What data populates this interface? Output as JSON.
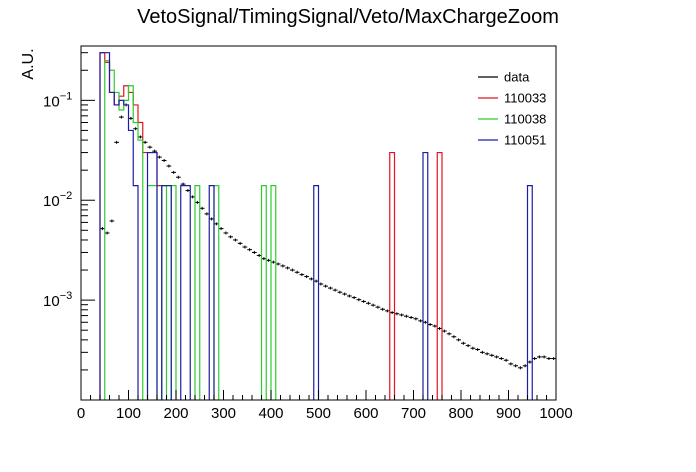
{
  "chart_data": {
    "type": "histogram",
    "title": "VetoSignal/TimingSignal/Veto/MaxChargeZoom",
    "xlabel": "",
    "ylabel": "A.U.",
    "xlim": [
      0,
      1000
    ],
    "ylim": [
      0.0001,
      0.35
    ],
    "yscale": "log",
    "grid": false,
    "legend_position": "top-right",
    "x_ticks": [
      0,
      100,
      200,
      300,
      400,
      500,
      600,
      700,
      800,
      900,
      1000
    ],
    "y_ticks": [
      {
        "value": 0.001,
        "base": "10",
        "exp": "−3"
      },
      {
        "value": 0.01,
        "base": "10",
        "exp": "−2"
      },
      {
        "value": 0.1,
        "base": "10",
        "exp": "−1"
      }
    ],
    "bin_width": 10,
    "series": [
      {
        "name": "data",
        "color": "#000000",
        "style": "errorbar",
        "bins": [
          [
            40,
            0.0052
          ],
          [
            50,
            0.0047
          ],
          [
            60,
            0.0062
          ],
          [
            70,
            0.038
          ],
          [
            80,
            0.068
          ],
          [
            90,
            0.09
          ],
          [
            100,
            0.066
          ],
          [
            110,
            0.052
          ],
          [
            120,
            0.043
          ],
          [
            130,
            0.038
          ],
          [
            140,
            0.034
          ],
          [
            150,
            0.031
          ],
          [
            160,
            0.027
          ],
          [
            170,
            0.025
          ],
          [
            180,
            0.022
          ],
          [
            190,
            0.019
          ],
          [
            200,
            0.017
          ],
          [
            210,
            0.0145
          ],
          [
            220,
            0.0125
          ],
          [
            230,
            0.0108
          ],
          [
            240,
            0.0095
          ],
          [
            250,
            0.0083
          ],
          [
            260,
            0.0073
          ],
          [
            270,
            0.0065
          ],
          [
            280,
            0.0058
          ],
          [
            290,
            0.0052
          ],
          [
            300,
            0.0047
          ],
          [
            310,
            0.0043
          ],
          [
            320,
            0.004
          ],
          [
            330,
            0.0037
          ],
          [
            340,
            0.0034
          ],
          [
            350,
            0.0032
          ],
          [
            360,
            0.003
          ],
          [
            370,
            0.0028
          ],
          [
            380,
            0.0026
          ],
          [
            390,
            0.0025
          ],
          [
            400,
            0.0024
          ],
          [
            410,
            0.0023
          ],
          [
            420,
            0.0022
          ],
          [
            430,
            0.0021
          ],
          [
            440,
            0.002
          ],
          [
            450,
            0.0019
          ],
          [
            460,
            0.0018
          ],
          [
            470,
            0.00172
          ],
          [
            480,
            0.00163
          ],
          [
            490,
            0.00155
          ],
          [
            500,
            0.00145
          ],
          [
            510,
            0.00138
          ],
          [
            520,
            0.00132
          ],
          [
            530,
            0.00126
          ],
          [
            540,
            0.0012
          ],
          [
            550,
            0.00115
          ],
          [
            560,
            0.0011
          ],
          [
            570,
            0.00106
          ],
          [
            580,
            0.00101
          ],
          [
            590,
            0.00097
          ],
          [
            600,
            0.00093
          ],
          [
            610,
            0.00089
          ],
          [
            620,
            0.00085
          ],
          [
            630,
            0.00081
          ],
          [
            640,
            0.00078
          ],
          [
            650,
            0.00075
          ],
          [
            660,
            0.00073
          ],
          [
            670,
            0.00071
          ],
          [
            680,
            0.00069
          ],
          [
            690,
            0.00067
          ],
          [
            700,
            0.00065
          ],
          [
            710,
            0.00062
          ],
          [
            720,
            0.0006
          ],
          [
            730,
            0.00057
          ],
          [
            740,
            0.00055
          ],
          [
            750,
            0.00052
          ],
          [
            760,
            0.00049
          ],
          [
            770,
            0.00046
          ],
          [
            780,
            0.00043
          ],
          [
            790,
            0.0004
          ],
          [
            800,
            0.00037
          ],
          [
            810,
            0.00035
          ],
          [
            820,
            0.00033
          ],
          [
            830,
            0.00032
          ],
          [
            840,
            0.0003
          ],
          [
            850,
            0.00029
          ],
          [
            860,
            0.00028
          ],
          [
            870,
            0.00027
          ],
          [
            880,
            0.00026
          ],
          [
            890,
            0.00025
          ],
          [
            900,
            0.00023
          ],
          [
            910,
            0.00022
          ],
          [
            920,
            0.00021
          ],
          [
            930,
            0.00022
          ],
          [
            940,
            0.00024
          ],
          [
            950,
            0.00026
          ],
          [
            960,
            0.00027
          ],
          [
            970,
            0.00027
          ],
          [
            980,
            0.00026
          ],
          [
            990,
            0.00026
          ]
        ]
      },
      {
        "name": "110033",
        "color": "#e0141e",
        "style": "step",
        "bins": [
          [
            40,
            0.3
          ],
          [
            50,
            0.24
          ],
          [
            60,
            0.12
          ],
          [
            70,
            0.09
          ],
          [
            80,
            0.11
          ],
          [
            90,
            0.14
          ],
          [
            100,
            0.12
          ],
          [
            110,
            0.09
          ],
          [
            120,
            0.06
          ],
          [
            130,
            0.03
          ],
          [
            140,
            0.03
          ],
          [
            150,
            0.03
          ],
          [
            160,
            0.014
          ],
          [
            650,
            0.03
          ],
          [
            750,
            0.03
          ]
        ]
      },
      {
        "name": "110038",
        "color": "#2ecc2e",
        "style": "step",
        "bins": [
          [
            50,
            0.25
          ],
          [
            60,
            0.2
          ],
          [
            70,
            0.12
          ],
          [
            80,
            0.08
          ],
          [
            90,
            0.1
          ],
          [
            100,
            0.14
          ],
          [
            110,
            0.06
          ],
          [
            120,
            0.04
          ],
          [
            140,
            0.014
          ],
          [
            150,
            0.014
          ],
          [
            170,
            0.014
          ],
          [
            190,
            0.014
          ],
          [
            240,
            0.014
          ],
          [
            280,
            0.014
          ],
          [
            380,
            0.014
          ],
          [
            400,
            0.014
          ]
        ]
      },
      {
        "name": "110051",
        "color": "#1c1ca8",
        "style": "step",
        "bins": [
          [
            40,
            0.3
          ],
          [
            50,
            0.3
          ],
          [
            60,
            0.12
          ],
          [
            70,
            0.09
          ],
          [
            80,
            0.1
          ],
          [
            90,
            0.09
          ],
          [
            100,
            0.05
          ],
          [
            110,
            0.014
          ],
          [
            140,
            0.03
          ],
          [
            150,
            0.03
          ],
          [
            170,
            0.014
          ],
          [
            180,
            0.014
          ],
          [
            210,
            0.014
          ],
          [
            220,
            0.014
          ],
          [
            270,
            0.014
          ],
          [
            490,
            0.014
          ],
          [
            720,
            0.03
          ],
          [
            940,
            0.014
          ]
        ]
      }
    ]
  }
}
